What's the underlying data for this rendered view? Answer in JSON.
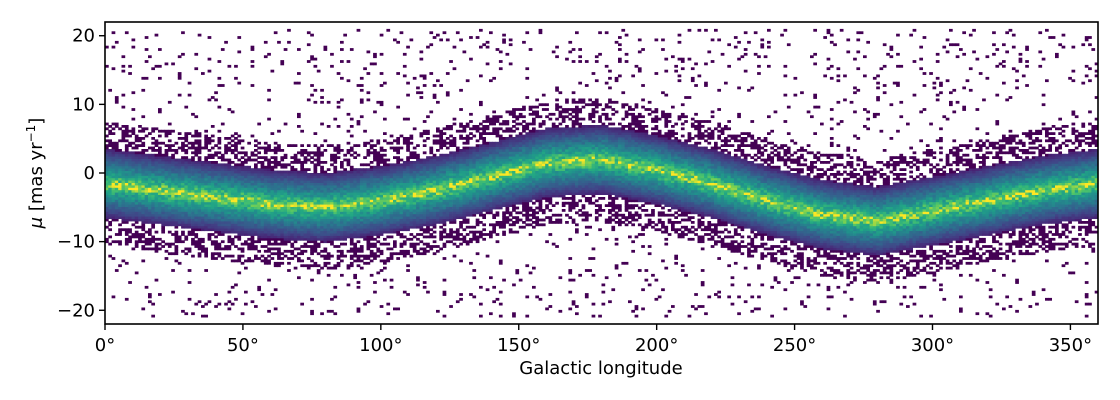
{
  "chart_data": {
    "type": "heatmap",
    "title": "",
    "xlabel": "Galactic longitude",
    "ylabel_symbol": "μ",
    "ylabel_unit_prefix": "[mas yr",
    "ylabel_unit_exponent": "−1",
    "ylabel_unit_suffix": "]",
    "xlim": [
      0,
      360
    ],
    "ylim": [
      -22,
      22
    ],
    "x_ticks": [
      0,
      50,
      100,
      150,
      200,
      250,
      300,
      350
    ],
    "x_tick_labels": [
      "0°",
      "50°",
      "100°",
      "150°",
      "200°",
      "250°",
      "300°",
      "350°"
    ],
    "y_ticks": [
      -20,
      -10,
      0,
      10,
      20
    ],
    "y_tick_labels": [
      "−20",
      "−10",
      "0",
      "10",
      "20"
    ],
    "grid": false,
    "colormap": "viridis",
    "ridge_center": {
      "x": [
        0,
        20,
        40,
        60,
        80,
        100,
        120,
        140,
        160,
        180,
        200,
        220,
        240,
        260,
        280,
        300,
        320,
        340,
        360
      ],
      "y": [
        -1.5,
        -2.5,
        -3.5,
        -4.5,
        -5.0,
        -4.0,
        -2.5,
        -0.5,
        1.5,
        2.0,
        0.5,
        -1.5,
        -4.0,
        -6.0,
        -7.0,
        -5.5,
        -4.0,
        -2.5,
        -1.5
      ]
    }
  },
  "colors": {
    "background": "#ffffff",
    "axes": "#000000",
    "cmap_low": "#440154",
    "cmap_mid": "#21918c",
    "cmap_high": "#fde725"
  }
}
